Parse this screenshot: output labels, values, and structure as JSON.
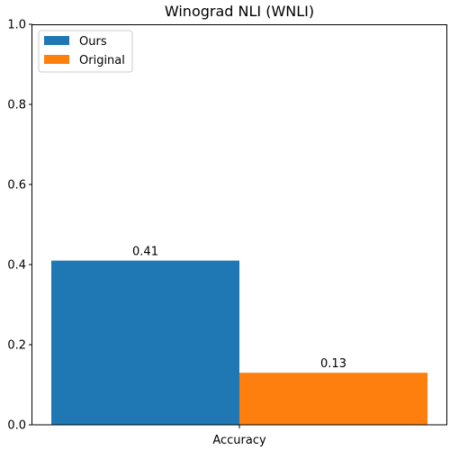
{
  "chart_data": {
    "type": "bar",
    "title": "Winograd NLI (WNLI)",
    "categories": [
      "Accuracy"
    ],
    "series": [
      {
        "name": "Ours",
        "values": [
          0.41
        ],
        "color": "#1f77b4",
        "data_label": "0.41"
      },
      {
        "name": "Original",
        "values": [
          0.13
        ],
        "color": "#ff7f0e",
        "data_label": "0.13"
      }
    ],
    "xlabel": "",
    "ylabel": "",
    "ylim": [
      0,
      1.0
    ],
    "yticks": [
      "0.0",
      "0.2",
      "0.4",
      "0.6",
      "0.8",
      "1.0"
    ],
    "grid": false,
    "legend_position": "top-left"
  }
}
